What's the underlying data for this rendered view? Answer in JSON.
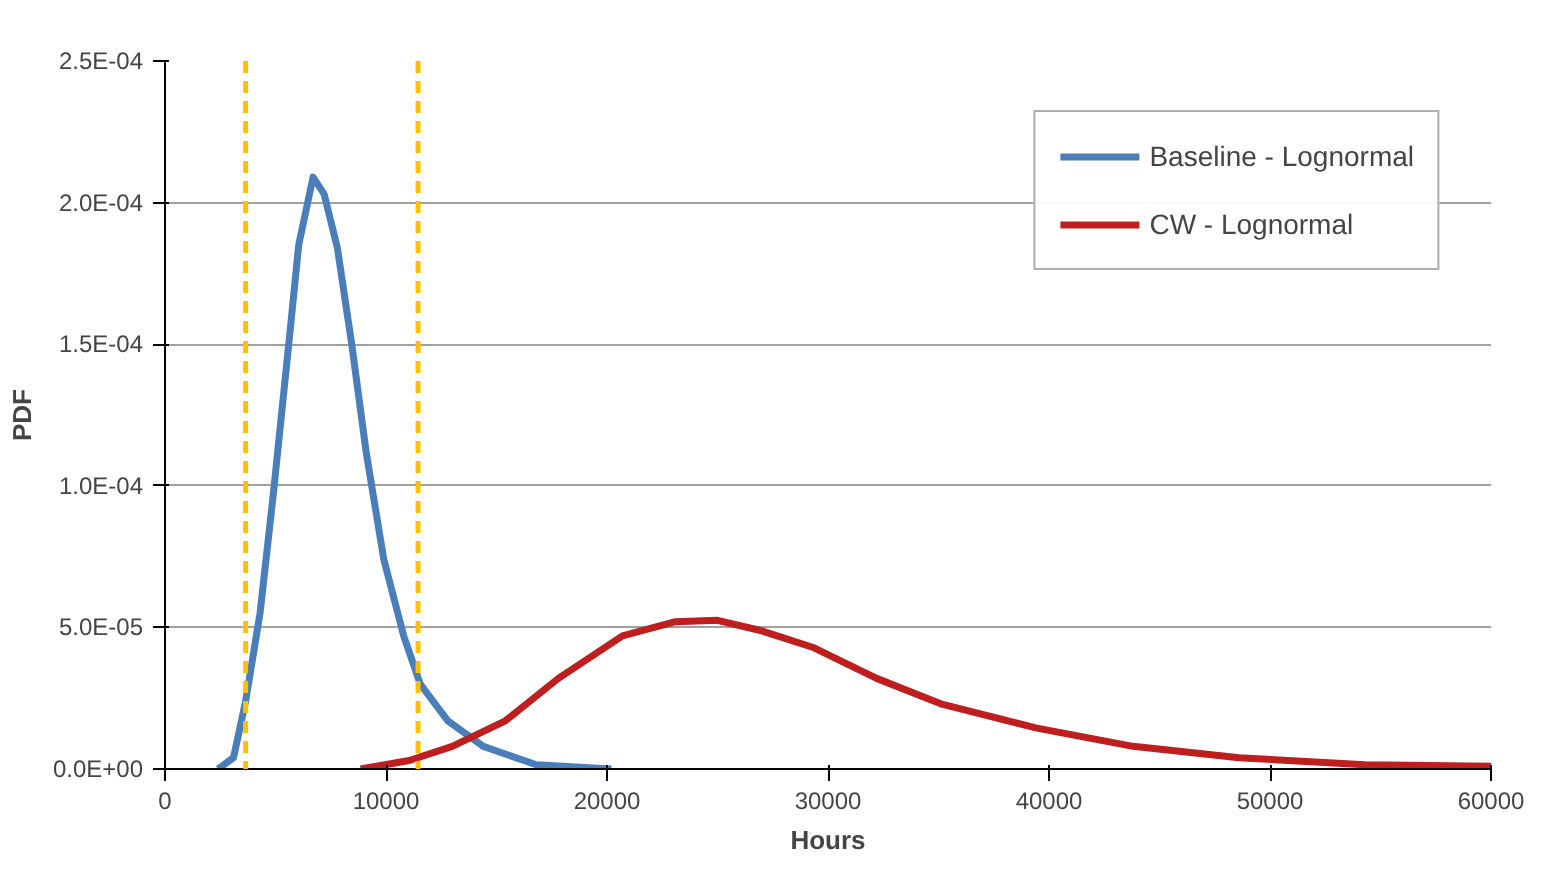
{
  "chart_data": {
    "type": "line",
    "xlabel": "Hours",
    "ylabel": "PDF",
    "xlim": [
      0,
      60000
    ],
    "xticks": [
      0,
      10000,
      20000,
      30000,
      40000,
      50000,
      60000
    ],
    "ylim": [
      0,
      0.00025
    ],
    "yticks": [
      {
        "value": 0,
        "label": "0.0E+00"
      },
      {
        "value": 5e-05,
        "label": "5.0E-05"
      },
      {
        "value": 0.0001,
        "label": "1.0E-04"
      },
      {
        "value": 0.00015,
        "label": "1.5E-04"
      },
      {
        "value": 0.0002,
        "label": "2.0E-04"
      },
      {
        "value": 0.00025,
        "label": "2.5E-04"
      }
    ],
    "grid": "y",
    "legend": "top right",
    "line_style": "solid",
    "marker": "none",
    "series": [
      {
        "name": "Baseline - Lognormal",
        "color": "#4a7ebb",
        "x": [
          2400,
          3100,
          3650,
          4300,
          4900,
          5600,
          6050,
          6700,
          7200,
          7800,
          8450,
          9100,
          9900,
          10800,
          11550,
          12800,
          14400,
          16800,
          20200
        ],
        "values": [
          0,
          4e-06,
          2.4e-05,
          5.5e-05,
          9.7e-05,
          0.00015,
          0.000185,
          0.000209,
          0.000203,
          0.000184,
          0.00015,
          0.000112,
          7.4e-05,
          4.7e-05,
          3e-05,
          1.7e-05,
          8e-06,
          1.5e-06,
          0
        ]
      },
      {
        "name": "CW - Lognormal",
        "color": "#be1e1e",
        "x": [
          8850,
          11050,
          13000,
          15400,
          17800,
          20700,
          23100,
          25000,
          26900,
          29300,
          32200,
          35100,
          39400,
          43800,
          48600,
          54300,
          60000
        ],
        "values": [
          0,
          3e-06,
          8e-06,
          1.7e-05,
          3.2e-05,
          4.7e-05,
          5.2e-05,
          5.25e-05,
          4.9e-05,
          4.3e-05,
          3.2e-05,
          2.3e-05,
          1.45e-05,
          8e-06,
          4e-06,
          1.5e-06,
          1e-06
        ]
      }
    ],
    "ref_lines": [
      {
        "axis": "x",
        "value": 3650,
        "color": "#ffc000",
        "line_style": "dashed"
      },
      {
        "axis": "x",
        "value": 11450,
        "color": "#ffc000",
        "line_style": "dashed"
      }
    ]
  }
}
